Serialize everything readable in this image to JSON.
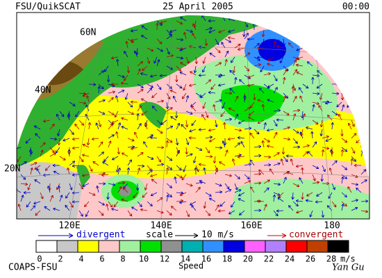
{
  "header": {
    "left": "FSU/QuikSCAT",
    "date": "25 April 2005",
    "time": "00:00"
  },
  "map": {
    "lat_labels": [
      "60N",
      "40N",
      "20N"
    ],
    "lon_labels": [
      "120E",
      "140E",
      "160E",
      "180"
    ]
  },
  "legend": {
    "divergent": "divergent",
    "scale": "scale",
    "scale_value": "10 m/s",
    "convergent": "convergent"
  },
  "colorbar": {
    "ticks": [
      0,
      2,
      4,
      6,
      8,
      10,
      12,
      14,
      16,
      18,
      20,
      22,
      24,
      26,
      28
    ],
    "colors": [
      "#ffffff",
      "#c8c8c8",
      "#ffff00",
      "#ffc8c8",
      "#a0f0a0",
      "#00e000",
      "#909090",
      "#00b0b0",
      "#3090ff",
      "#0000e0",
      "#ff60ff",
      "#b080ff",
      "#ff0000",
      "#c04000",
      "#000000"
    ],
    "unit": "m/s",
    "title": "Speed"
  },
  "footer": {
    "credit": "COAPS-FSU",
    "author": "Yan Gu"
  }
}
